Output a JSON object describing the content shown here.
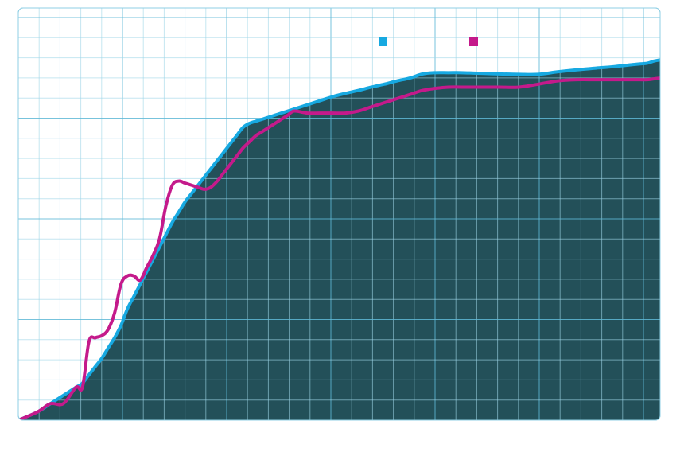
{
  "chart_data": {
    "type": "area",
    "title": "",
    "xlabel": "",
    "ylabel": "",
    "xlim": [
      0,
      100
    ],
    "ylim": [
      0,
      100
    ],
    "grid": true,
    "legend_position": "top-right",
    "x": [
      0,
      3,
      5,
      7,
      9,
      10,
      11,
      12,
      13,
      14,
      15,
      16,
      17,
      18,
      19,
      20,
      21,
      22,
      23,
      24,
      25,
      26,
      27,
      28,
      29,
      30,
      31,
      32,
      33,
      34,
      35,
      36,
      37,
      38,
      39,
      40,
      41,
      42,
      43,
      45,
      47,
      49,
      51,
      53,
      55,
      57,
      59,
      61,
      63,
      65,
      67,
      69,
      71,
      73,
      75,
      78,
      81,
      84,
      87,
      90,
      93,
      96,
      98,
      99,
      100
    ],
    "series": [
      {
        "name": "",
        "color": "#17a9e1",
        "fill": "#235059",
        "values": [
          0,
          2,
          4,
          6,
          8,
          9,
          11,
          13,
          15,
          17.5,
          20,
          23,
          27,
          30,
          33,
          36,
          39,
          42,
          45,
          48,
          50.5,
          53,
          55,
          57,
          59,
          61,
          63,
          65,
          67,
          69,
          71,
          72,
          72.5,
          73,
          73.5,
          74,
          74.5,
          75,
          75.5,
          76.5,
          77.5,
          78.5,
          79.3,
          80,
          80.8,
          81.5,
          82.3,
          83,
          84,
          84.3,
          84.3,
          84.3,
          84.2,
          84.1,
          84,
          83.9,
          83.9,
          84.5,
          85,
          85.4,
          85.8,
          86.3,
          86.6,
          87.1,
          87.4
        ]
      },
      {
        "name": "",
        "color": "#c41a8b",
        "values": [
          0,
          2,
          4,
          4,
          8,
          8,
          19,
          20,
          20.5,
          22,
          26,
          33,
          35,
          35,
          34,
          37,
          40,
          44,
          52,
          57,
          58,
          57.5,
          57,
          56.5,
          56,
          56.5,
          58,
          60,
          62,
          64,
          66,
          67.5,
          69,
          70,
          71,
          72,
          73,
          74,
          75,
          74.5,
          74.5,
          74.5,
          74.5,
          75,
          76,
          77,
          78,
          79,
          80,
          80.5,
          80.8,
          80.8,
          80.8,
          80.8,
          80.8,
          80.8,
          81.5,
          82.3,
          82.6,
          82.6,
          82.6,
          82.6,
          82.6,
          82.8,
          83
        ]
      }
    ]
  }
}
